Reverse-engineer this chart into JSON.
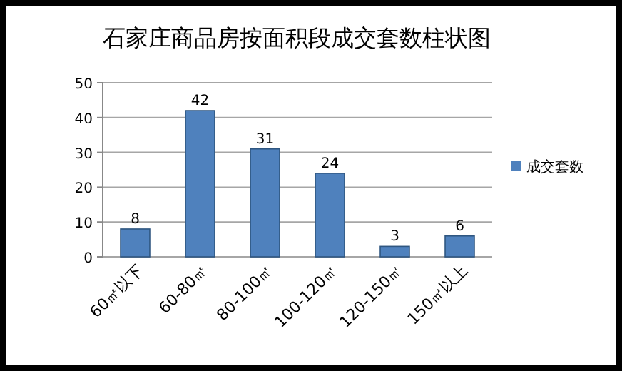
{
  "chart_data": {
    "type": "bar",
    "title": "石家庄商品房按面积段成交套数柱状图",
    "categories": [
      "60㎡以下",
      "60-80㎡",
      "80-100㎡",
      "100-120㎡",
      "120-150㎡",
      "150㎡以上"
    ],
    "series": [
      {
        "name": "成交套数",
        "color": "#4f81bd",
        "values": [
          8,
          42,
          31,
          24,
          3,
          6
        ]
      }
    ],
    "ylim": [
      0,
      50
    ],
    "yticks": [
      0,
      10,
      20,
      30,
      40,
      50
    ],
    "grid": "y",
    "legend": "right",
    "data_labels": true
  }
}
